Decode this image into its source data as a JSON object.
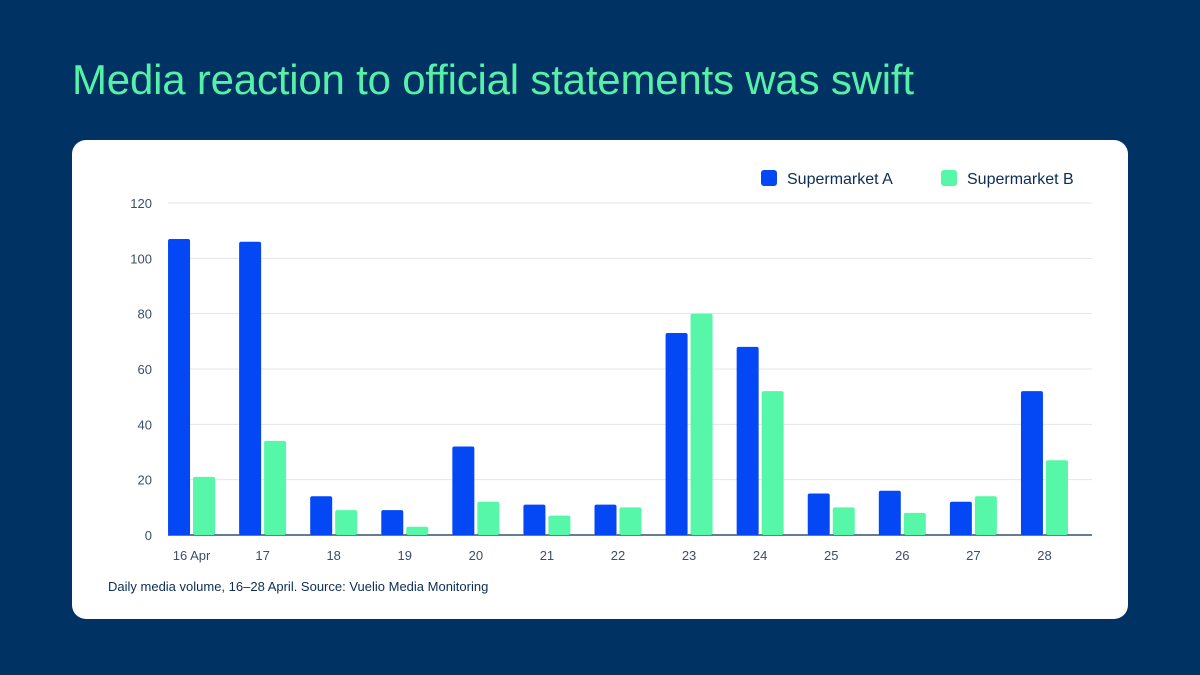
{
  "headline": "Media reaction to official statements was swift",
  "caption": "Daily media volume, 16–28 April. Source: Vuelio Media Monitoring",
  "colors": {
    "background": "#003263",
    "headline": "#56F0A8",
    "series_a": "#0448F5",
    "series_b": "#56F7A8"
  },
  "chart_data": {
    "type": "bar",
    "categories": [
      "16 Apr",
      "17",
      "18",
      "19",
      "20",
      "21",
      "22",
      "23",
      "24",
      "25",
      "26",
      "27",
      "28"
    ],
    "series": [
      {
        "name": "Supermarket A",
        "values": [
          107,
          106,
          14,
          9,
          32,
          11,
          11,
          73,
          68,
          15,
          16,
          12,
          52
        ]
      },
      {
        "name": "Supermarket B",
        "values": [
          21,
          34,
          9,
          3,
          12,
          7,
          10,
          80,
          52,
          10,
          8,
          14,
          27
        ]
      }
    ],
    "ylim": [
      0,
      120
    ],
    "yticks": [
      0,
      20,
      40,
      60,
      80,
      100,
      120
    ],
    "grid": true,
    "legend": "top-right"
  }
}
